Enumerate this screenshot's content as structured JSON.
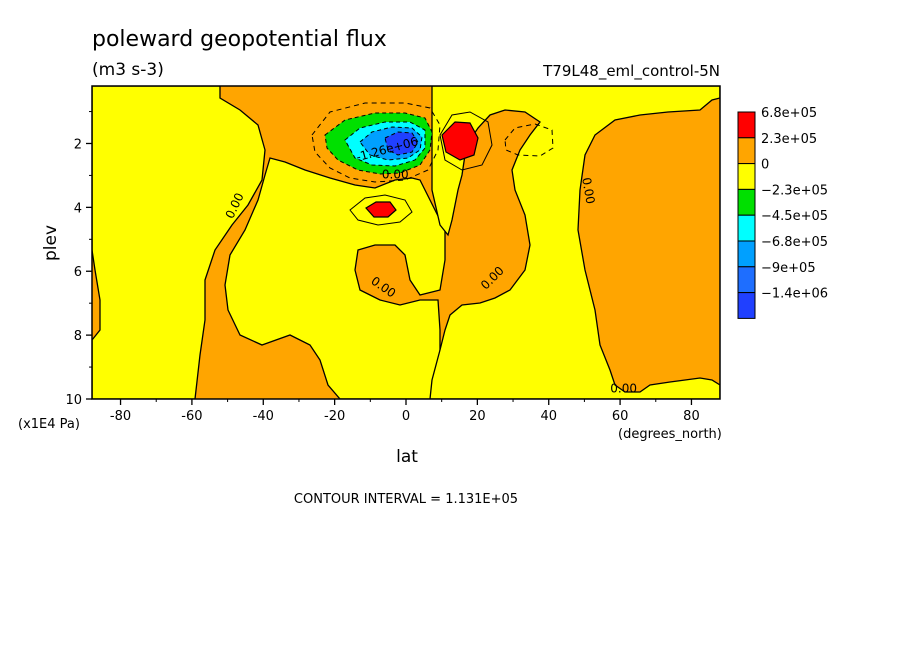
{
  "chart_data": {
    "type": "contour",
    "title": "poleward geopotential flux",
    "units": "(m3 s-3)",
    "experiment": "T79L48_eml_control-5N",
    "xlabel": "lat",
    "x_units": "(degrees_north)",
    "ylabel": "plev",
    "y_units": "(x1E4 Pa)",
    "xlim": [
      -88,
      88
    ],
    "ylim": [
      10,
      0.2
    ],
    "x_ticks": [
      -80,
      -60,
      -40,
      -20,
      0,
      20,
      40,
      60,
      80
    ],
    "x_tick_labels": [
      "-80",
      "-60",
      "-40",
      "-20",
      "0",
      "20",
      "40",
      "60",
      "80"
    ],
    "y_ticks": [
      2,
      4,
      6,
      8,
      10
    ],
    "y_tick_labels": [
      "2",
      "4",
      "6",
      "8",
      "10"
    ],
    "legend": {
      "placement": "right",
      "levels": [
        {
          "label": "6.8e+05",
          "color": "#ff0000"
        },
        {
          "label": "2.3e+05",
          "color": "#ffa500"
        },
        {
          "label": "0",
          "color": "#ffff00"
        },
        {
          "label": "−2.3e+05",
          "color": "#00e000"
        },
        {
          "label": "−4.5e+05",
          "color": "#00ffff"
        },
        {
          "label": "−6.8e+05",
          "color": "#00a0ff"
        },
        {
          "label": "−9e+05",
          "color": "#1e6eff"
        },
        {
          "label": "−1.4e+06",
          "color": "#2040ff"
        }
      ]
    },
    "contour_labels": [
      {
        "text": "0.00",
        "lat": -47,
        "plev": 4.0,
        "rotate": -65
      },
      {
        "text": "0.00",
        "lat": -3,
        "plev": 3.1,
        "rotate": 0
      },
      {
        "text": "0.00",
        "lat": -7,
        "plev": 6.6,
        "rotate": 35
      },
      {
        "text": "0.00",
        "lat": 25,
        "plev": 6.3,
        "rotate": -45
      },
      {
        "text": "0.00",
        "lat": 50,
        "plev": 3.5,
        "rotate": 80
      },
      {
        "text": "0.00",
        "lat": 61,
        "plev": 9.8,
        "rotate": 0
      },
      {
        "text": "-1.26e+06",
        "lat": -5,
        "plev": 2.3,
        "rotate": -15
      }
    ],
    "contour_interval_text": "CONTOUR INTERVAL = 1.131E+05",
    "regions": [
      {
        "name": "orange-background",
        "level": "2.3e+05",
        "color": "#ffa500"
      },
      {
        "name": "yellow-northern-band",
        "level": "0",
        "color": "#ffff00"
      },
      {
        "name": "yellow-southern-band",
        "level": "0",
        "color": "#ffff00"
      },
      {
        "name": "yellow-lower-troposphere",
        "level": "0",
        "color": "#ffff00"
      },
      {
        "name": "negative-jet-core",
        "level": "−1.4e+06",
        "color": "#2040ff"
      },
      {
        "name": "positive-max-upper",
        "level": "6.8e+05",
        "color": "#ff0000"
      },
      {
        "name": "positive-max-mid",
        "level": "6.8e+05",
        "color": "#ff0000"
      }
    ]
  }
}
